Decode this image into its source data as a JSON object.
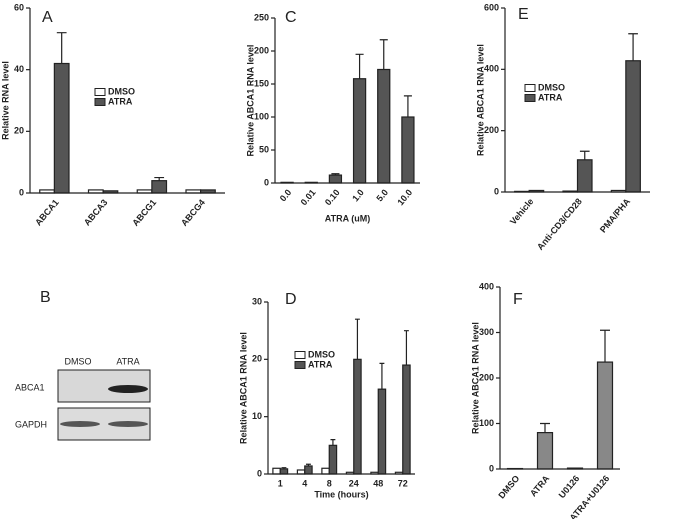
{
  "chart_data": [
    {
      "type": "bar",
      "panel": "A",
      "ylabel": "Relative RNA level",
      "categories": [
        "ABCA1",
        "ABCA3",
        "ABCG1",
        "ABCG4"
      ],
      "series": [
        {
          "name": "DMSO",
          "color": "#ffffff",
          "values": [
            1,
            1,
            1,
            1
          ]
        },
        {
          "name": "ATRA",
          "color": "#555555",
          "values": [
            42,
            0.7,
            4,
            1
          ],
          "errors": [
            10,
            null,
            1,
            null
          ]
        }
      ],
      "ylim": [
        0,
        60
      ],
      "yticks": [
        0,
        20,
        40,
        60
      ]
    },
    {
      "type": "bar",
      "panel": "C",
      "ylabel": "Relative ABCA1 RNA level",
      "xlabel": "ATRA (uM)",
      "categories": [
        "0.0",
        "0.01",
        "0.10",
        "1.0",
        "5.0",
        "10.0"
      ],
      "color": "#555555",
      "values": [
        1,
        1,
        12,
        158,
        172,
        100
      ],
      "errors": [
        null,
        null,
        2,
        37,
        45,
        32
      ],
      "ylim": [
        0,
        250
      ],
      "yticks": [
        0,
        50,
        100,
        150,
        200,
        250
      ]
    },
    {
      "type": "bar",
      "panel": "E",
      "ylabel": "Relative ABCA1 RNA level",
      "categories": [
        "Vehicle",
        "Anti-CD3/CD28",
        "PMA/PHA"
      ],
      "series": [
        {
          "name": "DMSO",
          "color": "#ffffff",
          "values": [
            2,
            3,
            5
          ]
        },
        {
          "name": "ATRA",
          "color": "#555555",
          "values": [
            5,
            105,
            428
          ],
          "errors": [
            null,
            28,
            88
          ]
        }
      ],
      "ylim": [
        0,
        600
      ],
      "yticks": [
        0,
        200,
        400,
        600
      ]
    },
    {
      "type": "bar",
      "panel": "D",
      "ylabel": "Relative ABCA1 RNA level",
      "xlabel": "Time (hours)",
      "categories": [
        "1",
        "4",
        "8",
        "24",
        "48",
        "72"
      ],
      "series": [
        {
          "name": "DMSO",
          "color": "#ffffff",
          "values": [
            1,
            0.7,
            1,
            0.3,
            0.3,
            0.3
          ]
        },
        {
          "name": "ATRA",
          "color": "#555555",
          "values": [
            0.9,
            1.4,
            5,
            20,
            14.8,
            19
          ],
          "errors": [
            0.2,
            0.3,
            1,
            7,
            4.5,
            6
          ]
        }
      ],
      "ylim": [
        0,
        30
      ],
      "yticks": [
        0,
        10,
        20,
        30
      ]
    },
    {
      "type": "bar",
      "panel": "F",
      "ylabel": "Relative ABCA1 RNA level",
      "categories": [
        "DMSO",
        "ATRA",
        "U0126",
        "ATRA+U0126"
      ],
      "color": "#888888",
      "values": [
        1,
        80,
        2,
        235
      ],
      "errors": [
        null,
        20,
        null,
        70
      ],
      "ylim": [
        0,
        400
      ],
      "yticks": [
        0,
        100,
        200,
        300,
        400
      ]
    }
  ],
  "blot": {
    "panel": "B",
    "lanes": [
      "DMSO",
      "ATRA"
    ],
    "rows": [
      "ABCA1",
      "GAPDH"
    ]
  }
}
